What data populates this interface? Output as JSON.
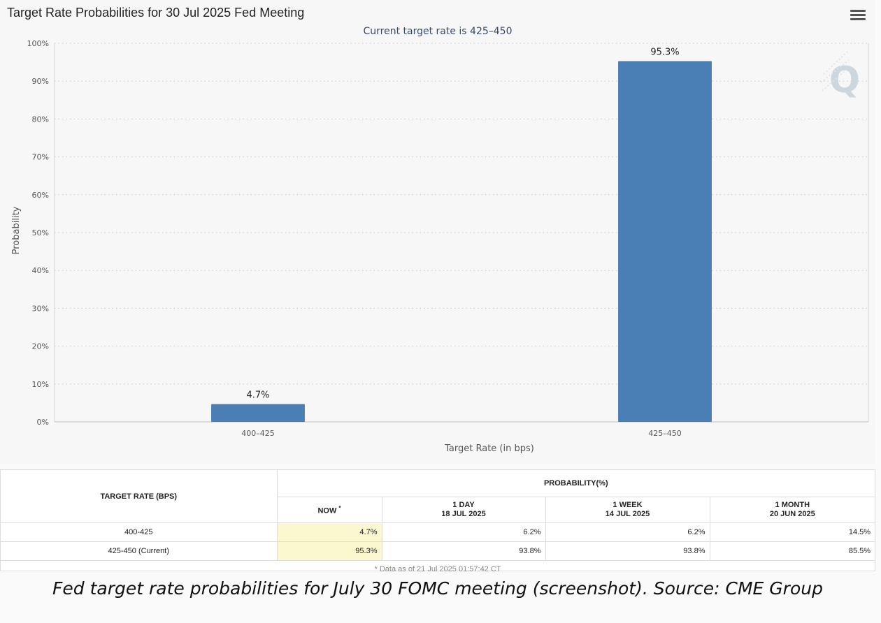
{
  "chart": {
    "title": "Target Rate Probabilities for 30 Jul 2025 Fed Meeting",
    "subtitle": "Current target rate is 425–450",
    "watermark": "Q"
  },
  "chart_data": {
    "type": "bar",
    "categories": [
      "400–425",
      "425–450"
    ],
    "values": [
      4.7,
      95.3
    ],
    "data_labels": [
      "4.7%",
      "95.3%"
    ],
    "xlabel": "Target Rate (in bps)",
    "ylabel": "Probability",
    "ylim": [
      0,
      100
    ],
    "yticks": [
      0,
      10,
      20,
      30,
      40,
      50,
      60,
      70,
      80,
      90,
      100
    ],
    "ytick_suffix": "%",
    "grid": true,
    "bar_color": "#4a7fb5"
  },
  "table": {
    "col_target": "TARGET RATE (BPS)",
    "group_header": "PROBABILITY(%)",
    "now_label": "NOW",
    "now_mark": "*",
    "day_label": "1 DAY",
    "day_date": "18 JUL 2025",
    "week_label": "1 WEEK",
    "week_date": "14 JUL 2025",
    "month_label": "1 MONTH",
    "month_date": "20 JUN 2025",
    "rows": [
      {
        "rate": "400-425",
        "now": "4.7%",
        "day": "6.2%",
        "week": "6.2%",
        "month": "14.5%"
      },
      {
        "rate": "425-450 (Current)",
        "now": "95.3%",
        "day": "93.8%",
        "week": "93.8%",
        "month": "85.5%"
      }
    ],
    "footnote": "* Data as of 21 Jul 2025 01:57:42 CT"
  },
  "caption": "Fed target rate probabilities for July 30 FOMC meeting (screenshot). Source: CME Group"
}
